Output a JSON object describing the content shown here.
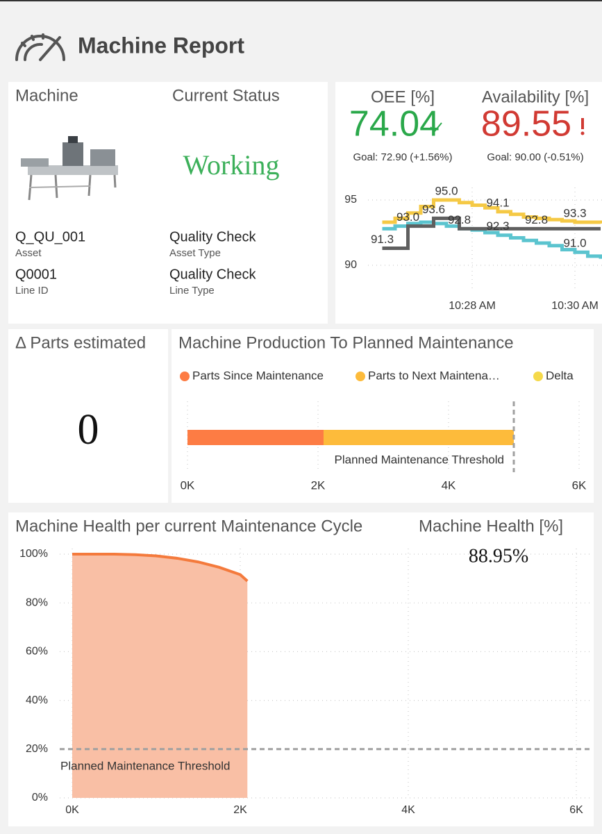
{
  "header": {
    "title": "Machine Report"
  },
  "machine_card": {
    "machine_heading": "Machine",
    "status_heading": "Current Status",
    "status": "Working",
    "fields": [
      {
        "value": "Q_QU_001",
        "label": "Asset"
      },
      {
        "value": "Quality Check",
        "label": "Asset Type"
      },
      {
        "value": "Q0001",
        "label": "Line ID"
      },
      {
        "value": "Quality Check",
        "label": "Line Type"
      }
    ]
  },
  "kpis": [
    {
      "title": "OEE [%]",
      "value": 74.04,
      "goal": "Goal: 72.90 (+1.56%)"
    },
    {
      "title": "Availability [%]",
      "value": 89.55,
      "goal": "Goal: 90.00 (-0.51%)"
    }
  ],
  "parts_estimated": {
    "title": "Δ Parts estimated",
    "value": 0
  },
  "machine_health": {
    "title": "Machine Health [%]",
    "value": "88.95%"
  },
  "chart_data": [
    {
      "type": "line",
      "step": true,
      "categories": [
        null,
        null,
        null,
        null,
        null,
        null,
        null,
        "10:28 AM",
        null,
        null,
        null,
        null,
        null,
        null,
        null,
        "10:30 AM",
        null,
        null
      ],
      "ylim": [
        88,
        96
      ],
      "yticks": [
        90,
        95
      ],
      "grid": true,
      "series": [
        {
          "color": "#f5c945",
          "values": [
            93.3,
            93.6,
            94.0,
            94.5,
            95.0,
            95.0,
            94.8,
            94.6,
            94.4,
            94.1,
            93.9,
            93.7,
            93.6,
            93.5,
            93.4,
            93.3,
            93.3,
            93.2
          ],
          "value_labels": [
            null,
            null,
            null,
            null,
            null,
            "95.0",
            null,
            null,
            null,
            "94.1",
            null,
            null,
            null,
            null,
            null,
            "93.3",
            null,
            null
          ]
        },
        {
          "color": "#5bc4cf",
          "values": [
            92.8,
            93.0,
            93.2,
            93.3,
            93.2,
            93.0,
            92.8,
            92.7,
            92.5,
            92.3,
            92.1,
            91.9,
            91.7,
            91.5,
            91.2,
            91.0,
            90.7,
            90.5
          ],
          "value_labels": [
            null,
            null,
            null,
            null,
            null,
            null,
            "92.8",
            null,
            null,
            "92.3",
            null,
            null,
            null,
            null,
            null,
            "91.0",
            null,
            null
          ]
        },
        {
          "color": "#5f5f5f",
          "values": [
            91.3,
            91.3,
            93.0,
            93.0,
            93.6,
            93.6,
            92.8,
            92.8,
            92.8,
            92.8,
            92.8,
            92.8,
            92.8,
            92.8,
            92.8,
            92.8,
            92.8,
            92.8
          ],
          "value_labels": [
            "91.3",
            null,
            "93.0",
            null,
            "93.6",
            null,
            null,
            null,
            null,
            null,
            null,
            null,
            "92.8",
            null,
            null,
            null,
            null,
            null
          ]
        }
      ]
    },
    {
      "type": "bar",
      "orientation": "horizontal",
      "stacked": true,
      "title": "Machine Production To Planned Maintenance",
      "categories": [
        null
      ],
      "series": [
        {
          "name": "Parts Since Maintenance",
          "color": "#fd7c44",
          "values": [
            2085
          ]
        },
        {
          "name": "Parts to Next Maintena…",
          "color": "#fdbb3b",
          "values": [
            2915
          ]
        },
        {
          "name": "Delta",
          "color": "#f5d94a",
          "values": [
            0
          ]
        }
      ],
      "xlim": [
        0,
        6000
      ],
      "xticks": [
        {
          "value": 0,
          "label": "0K"
        },
        {
          "value": 2000,
          "label": "2K"
        },
        {
          "value": 4000,
          "label": "4K"
        },
        {
          "value": 6000,
          "label": "6K"
        }
      ],
      "threshold": {
        "value": 5000,
        "label": "Planned Maintenance Threshold"
      },
      "grid": true
    },
    {
      "type": "area",
      "title": "Machine Health per current Maintenance Cycle",
      "x": [
        0,
        250,
        500,
        750,
        1000,
        1250,
        1500,
        1750,
        2000,
        2085
      ],
      "values": [
        100,
        100,
        100,
        99.8,
        99.3,
        98.3,
        96.8,
        94.6,
        91.6,
        88.95
      ],
      "color": "#f47a3c",
      "fill": "#f9bfa5",
      "xlim": [
        0,
        6000
      ],
      "xticks": [
        {
          "value": 0,
          "label": "0K"
        },
        {
          "value": 2000,
          "label": "2K"
        },
        {
          "value": 4000,
          "label": "4K"
        },
        {
          "value": 6000,
          "label": "6K"
        }
      ],
      "ylim": [
        0,
        100
      ],
      "yticks": [
        {
          "value": 0,
          "label": "0%"
        },
        {
          "value": 20,
          "label": "20%"
        },
        {
          "value": 40,
          "label": "40%"
        },
        {
          "value": 60,
          "label": "60%"
        },
        {
          "value": 80,
          "label": "80%"
        },
        {
          "value": 100,
          "label": "100%"
        }
      ],
      "threshold": {
        "value": 20,
        "label": "Planned Maintenance Threshold"
      },
      "grid": true
    }
  ]
}
